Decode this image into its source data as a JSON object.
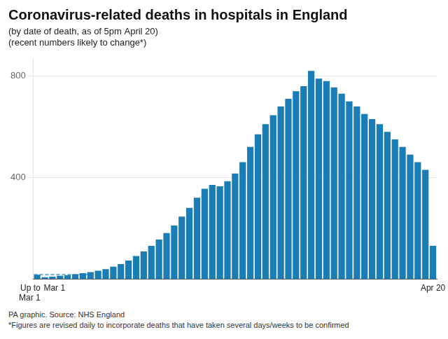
{
  "chart_data": {
    "type": "bar",
    "title": "Coronavirus-related deaths in hospitals in England",
    "subtitle": [
      "(by date of death, as of 5pm April 20)",
      "(recent numbers likely to change*)"
    ],
    "annotations": [
      "PA graphic. Source: NHS England",
      "*Figures are revised daily to incorporate deaths that have taken several days/weeks to be confirmed"
    ],
    "categories": [
      "Up to\nMar 1",
      "Mar 1",
      null,
      null,
      null,
      null,
      null,
      null,
      null,
      null,
      null,
      null,
      null,
      null,
      null,
      null,
      null,
      null,
      null,
      null,
      null,
      null,
      null,
      null,
      null,
      null,
      null,
      null,
      null,
      null,
      null,
      null,
      null,
      null,
      null,
      null,
      null,
      null,
      null,
      null,
      null,
      null,
      null,
      null,
      null,
      null,
      null,
      null,
      null,
      null,
      null,
      null,
      "Apr 20"
    ],
    "values": [
      16,
      6,
      8,
      12,
      14,
      18,
      22,
      26,
      32,
      38,
      48,
      58,
      72,
      90,
      108,
      130,
      155,
      180,
      210,
      245,
      280,
      320,
      355,
      370,
      365,
      385,
      415,
      460,
      520,
      570,
      610,
      645,
      680,
      710,
      740,
      760,
      820,
      790,
      780,
      755,
      730,
      700,
      680,
      650,
      630,
      610,
      580,
      550,
      520,
      490,
      460,
      430,
      130
    ],
    "color": "#1b7db5",
    "ylim": [
      0,
      870
    ],
    "yticks": [
      400,
      800
    ],
    "grid": true
  }
}
